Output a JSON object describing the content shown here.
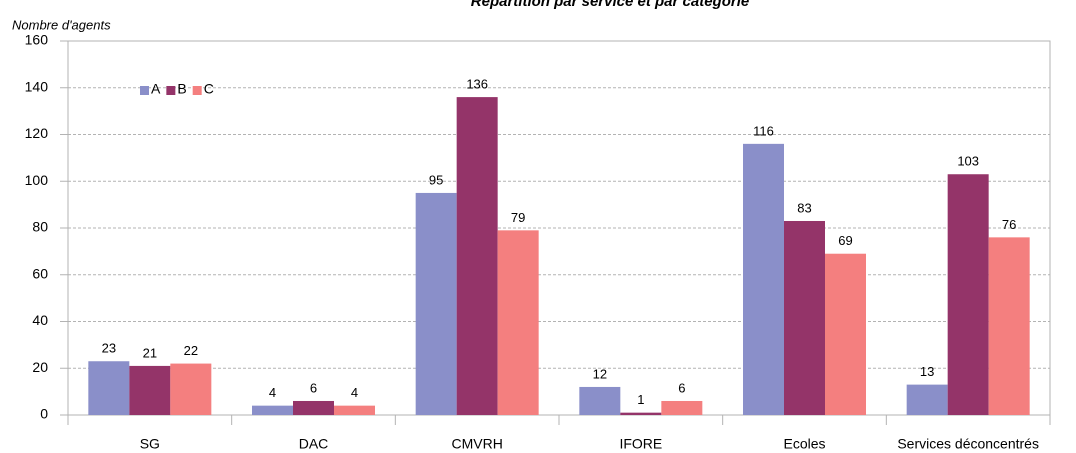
{
  "chart_data": {
    "type": "bar",
    "title": "Répartition par service et par catégorie",
    "y_label": "Nombre d'agents",
    "categories": [
      "SG",
      "DAC",
      "CMVRH",
      "IFORE",
      "Ecoles",
      "Services déconcentrés"
    ],
    "series": [
      {
        "name": "A",
        "color": "#8a8fc9",
        "values": [
          23,
          4,
          95,
          12,
          116,
          13
        ]
      },
      {
        "name": "B",
        "color": "#943469",
        "values": [
          21,
          6,
          136,
          1,
          83,
          103
        ]
      },
      {
        "name": "C",
        "color": "#f47f7f",
        "values": [
          22,
          4,
          79,
          6,
          69,
          76
        ]
      }
    ],
    "ylim": [
      0,
      160
    ],
    "yticks": [
      0,
      20,
      40,
      60,
      80,
      100,
      120,
      140,
      160
    ],
    "grid": true,
    "legend": "top-left"
  }
}
